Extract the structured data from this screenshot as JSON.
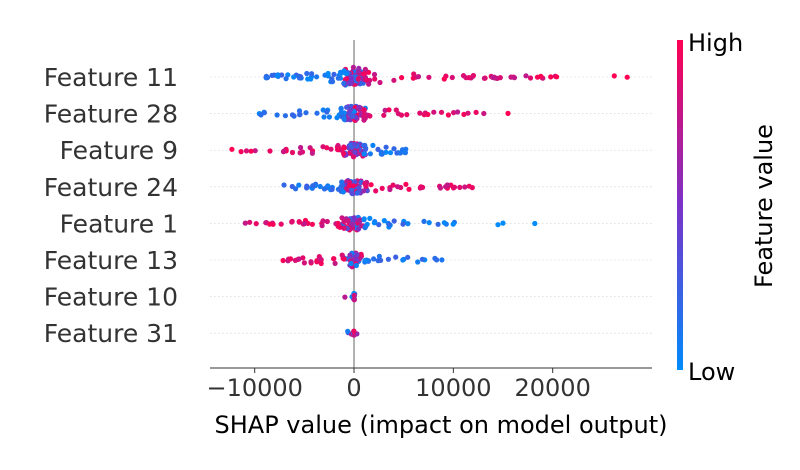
{
  "chart_data": {
    "type": "scatter",
    "subtype": "shap-beeswarm-summary",
    "xlabel": "SHAP value (impact on model output)",
    "xlim": [
      -14500,
      30000
    ],
    "xticks": [
      -10000,
      0,
      10000,
      20000
    ],
    "xtick_labels": [
      "−10000",
      "0",
      "10000",
      "20000"
    ],
    "colorbar": {
      "title": "Feature value",
      "high_label": "High",
      "low_label": "Low",
      "high_color": "#ff0052",
      "low_color": "#008bfb"
    },
    "features": [
      {
        "name": "Feature 11",
        "low_range": [
          -9500,
          -1000
        ],
        "high_range": [
          1000,
          20500
        ],
        "outliers": [
          {
            "x": 18800,
            "v": 1
          },
          {
            "x": 19800,
            "v": 1
          },
          {
            "x": 20400,
            "v": 1
          },
          {
            "x": 26200,
            "v": 1
          },
          {
            "x": 27500,
            "v": 1
          }
        ],
        "core_spread": 9,
        "n": 150
      },
      {
        "name": "Feature 28",
        "low_range": [
          -10000,
          -1000
        ],
        "high_range": [
          1000,
          13500
        ],
        "outliers": [
          {
            "x": 15500,
            "v": 1
          }
        ],
        "core_spread": 7,
        "n": 110
      },
      {
        "name": "Feature 9",
        "low_range": [
          1000,
          6000
        ],
        "high_range": [
          -12300,
          -1000
        ],
        "outliers": [],
        "core_spread": 6,
        "n": 100
      },
      {
        "name": "Feature 24",
        "low_range": [
          -8000,
          -1000
        ],
        "high_range": [
          1000,
          12000
        ],
        "outliers": [],
        "core_spread": 6,
        "n": 100
      },
      {
        "name": "Feature 1",
        "low_range": [
          1000,
          10500
        ],
        "high_range": [
          -11500,
          -1000
        ],
        "outliers": [
          {
            "x": 14500,
            "v": 0
          },
          {
            "x": 15000,
            "v": 0
          },
          {
            "x": 18200,
            "v": 0
          }
        ],
        "core_spread": 6,
        "n": 100
      },
      {
        "name": "Feature 13",
        "low_range": [
          1000,
          9000
        ],
        "high_range": [
          -7600,
          -1000
        ],
        "outliers": [],
        "core_spread": 6,
        "n": 80
      },
      {
        "name": "Feature 10",
        "low_range": [
          -50,
          50
        ],
        "high_range": [
          -50,
          50
        ],
        "outliers": [],
        "core_spread": 2,
        "n": 10
      },
      {
        "name": "Feature 31",
        "low_range": [
          -50,
          50
        ],
        "high_range": [
          -50,
          50
        ],
        "outliers": [],
        "core_spread": 2,
        "n": 10
      }
    ]
  }
}
